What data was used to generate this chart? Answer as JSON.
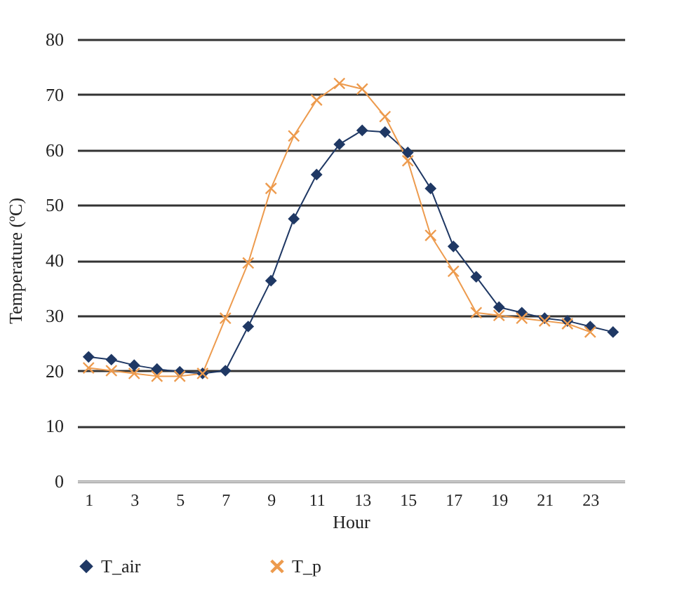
{
  "chart_data": {
    "type": "line",
    "xlabel": "Hour",
    "ylabel": "Temperature (ºC)",
    "x": [
      1,
      2,
      3,
      4,
      5,
      6,
      7,
      8,
      9,
      10,
      11,
      12,
      13,
      14,
      15,
      16,
      17,
      18,
      19,
      20,
      21,
      22,
      23,
      24
    ],
    "xlim": [
      0.5,
      24.5
    ],
    "xticks": [
      1,
      3,
      5,
      7,
      9,
      11,
      13,
      15,
      17,
      19,
      21,
      23
    ],
    "ylim": [
      0,
      80
    ],
    "yticks": [
      0,
      10,
      20,
      30,
      40,
      50,
      60,
      70,
      80
    ],
    "grid": "y",
    "legend": "bottom",
    "series": [
      {
        "name": "T_air",
        "color": "#1f3864",
        "marker": "diamond",
        "values": [
          22.5,
          22,
          21,
          20.3,
          19.8,
          19.5,
          20,
          28,
          36.3,
          47.5,
          55.5,
          61,
          63.5,
          63.2,
          59.5,
          53,
          42.5,
          37,
          31.5,
          30.5,
          29.5,
          29,
          28,
          27
        ]
      },
      {
        "name": "T_p",
        "color": "#ed9b4e",
        "marker": "cross",
        "values": [
          20.5,
          20,
          19.5,
          19,
          19,
          19.5,
          29.5,
          39.5,
          53,
          62.5,
          69,
          72,
          71,
          66,
          58,
          44.5,
          38,
          30.5,
          30,
          29.5,
          29,
          28.5,
          27,
          null
        ]
      }
    ]
  }
}
